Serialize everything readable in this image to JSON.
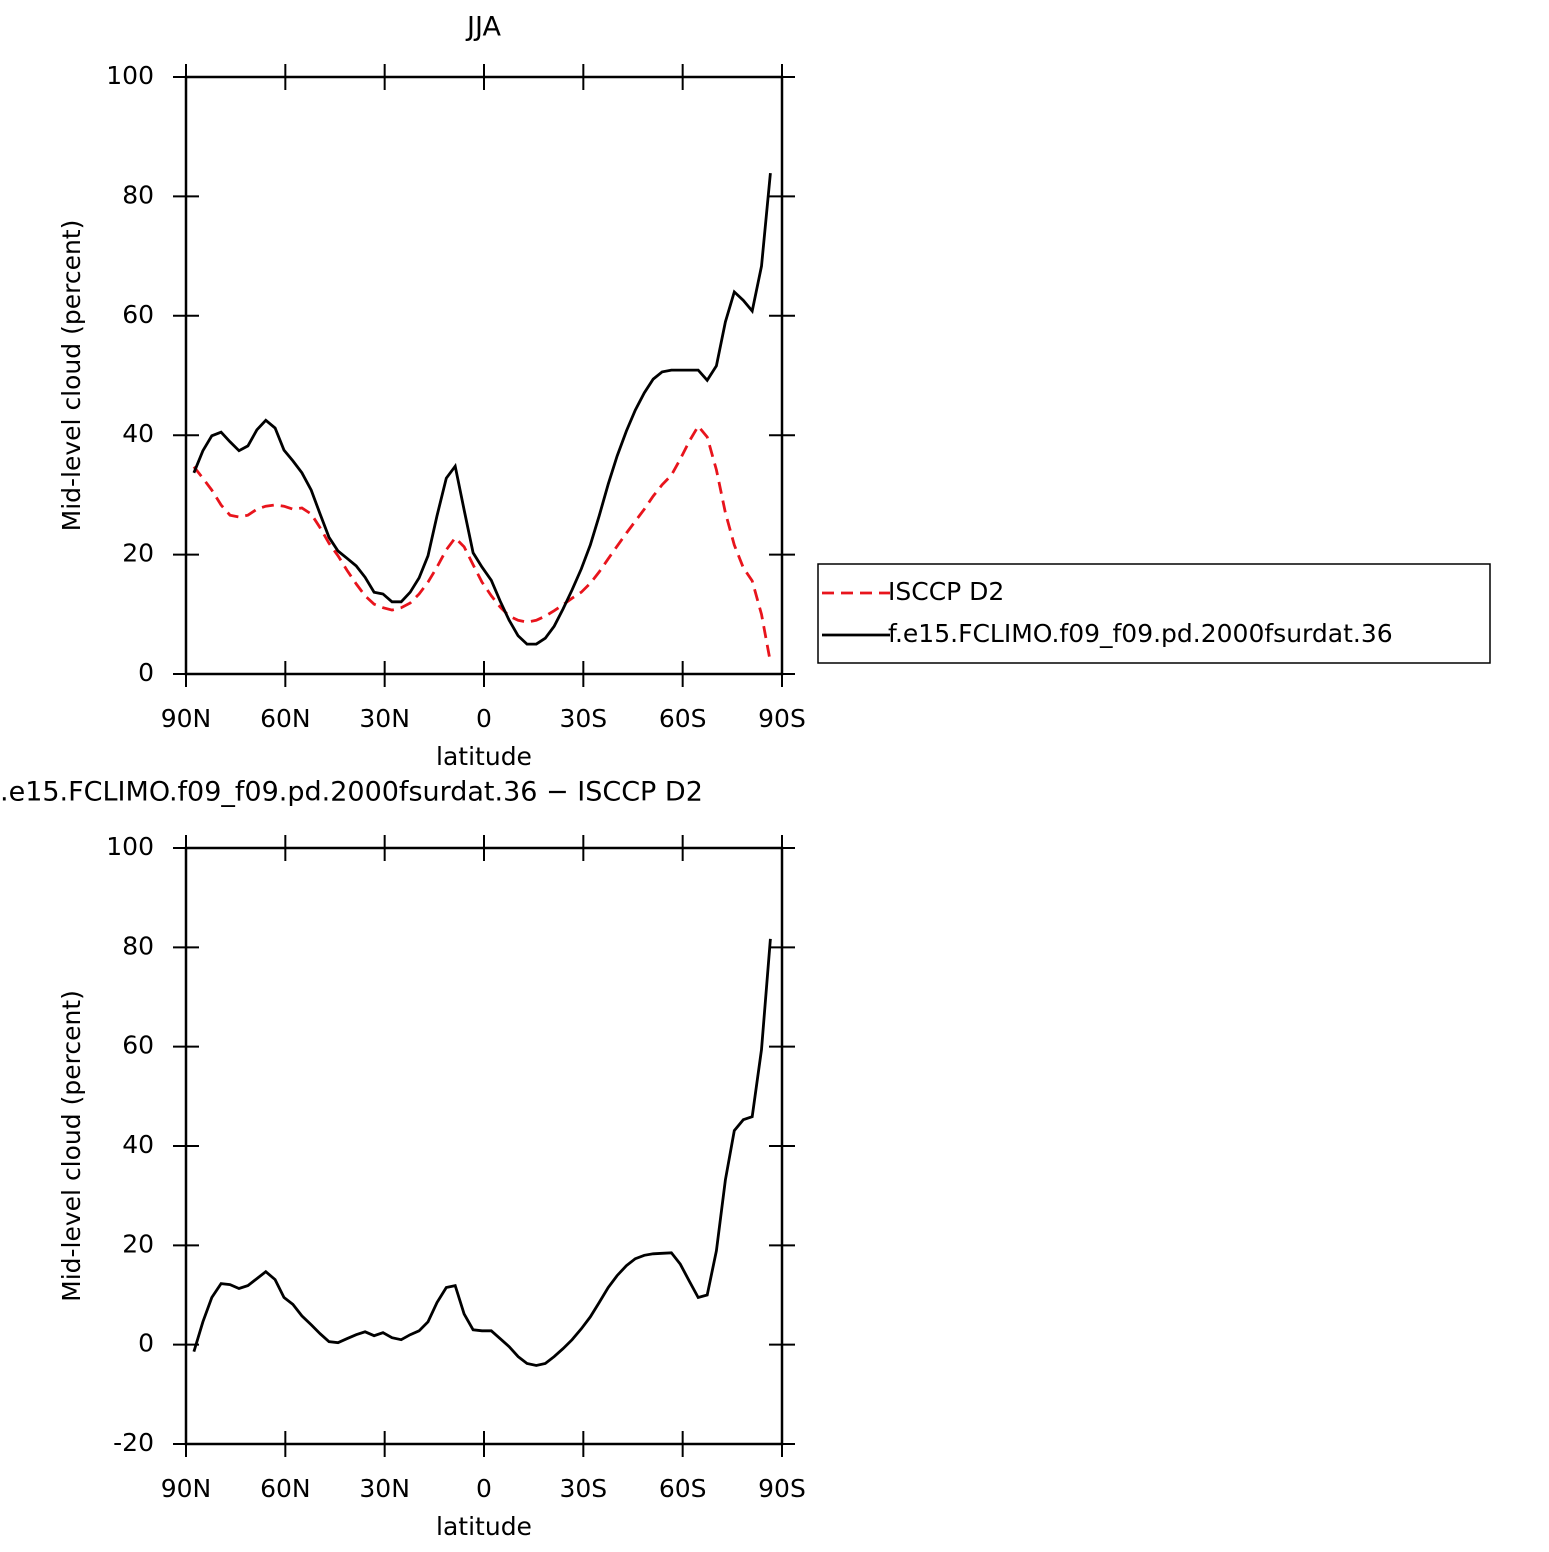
{
  "chart_data": [
    {
      "type": "line",
      "title": "JJA",
      "xlabel": "latitude",
      "ylabel": "Mid-level cloud (percent)",
      "xlim": [
        90,
        -90
      ],
      "xticks": [
        {
          "value": 90,
          "label": "90N"
        },
        {
          "value": 60,
          "label": "60N"
        },
        {
          "value": 30,
          "label": "30N"
        },
        0,
        {
          "value": -30,
          "label": "30S"
        },
        {
          "value": -60,
          "label": "60S"
        },
        {
          "value": -90,
          "label": "90S"
        }
      ],
      "ylim": [
        0,
        100
      ],
      "yticks": [
        0,
        20,
        40,
        60,
        80,
        100
      ],
      "legend": "right",
      "x": [
        87.6,
        84.9,
        82.2,
        79.4,
        76.7,
        74.0,
        71.3,
        68.6,
        65.9,
        63.1,
        60.4,
        57.7,
        55.0,
        52.2,
        49.5,
        46.8,
        44.1,
        41.4,
        38.6,
        35.9,
        33.2,
        30.5,
        27.8,
        25.0,
        22.3,
        19.6,
        16.9,
        14.2,
        11.4,
        8.7,
        6.0,
        3.3,
        0.6,
        -2.2,
        -4.9,
        -7.6,
        -10.3,
        -13.0,
        -15.8,
        -18.5,
        -21.2,
        -23.9,
        -26.6,
        -29.4,
        -32.1,
        -34.8,
        -37.5,
        -40.2,
        -43.0,
        -45.7,
        -48.4,
        -51.1,
        -53.8,
        -56.6,
        -59.3,
        -62.0,
        -64.7,
        -67.4,
        -70.2,
        -72.9,
        -75.6,
        -78.3,
        -81.0,
        -83.8,
        -86.5
      ],
      "series": [
        {
          "name": "ISCCP D2",
          "color": "#e8141c",
          "dashed": true,
          "values": [
            34.7,
            32.8,
            30.8,
            28.3,
            26.6,
            26.3,
            26.6,
            27.6,
            28.1,
            28.3,
            28.1,
            27.6,
            27.8,
            26.8,
            24.5,
            21.9,
            19.8,
            17.4,
            15.1,
            13.1,
            11.7,
            11.1,
            10.7,
            11.1,
            11.9,
            13.4,
            15.4,
            17.9,
            20.8,
            22.8,
            21.3,
            18.3,
            15.4,
            13.1,
            11.2,
            9.7,
            9.0,
            8.7,
            9.0,
            9.7,
            10.6,
            11.6,
            12.7,
            13.7,
            15.2,
            17.1,
            19.3,
            21.4,
            23.6,
            25.6,
            27.6,
            29.8,
            31.7,
            33.3,
            36.0,
            39.0,
            41.5,
            39.7,
            34.2,
            27.0,
            21.6,
            17.8,
            15.6,
            10.0,
            2.0
          ]
        },
        {
          "name": "f.e15.FCLIMO.f09_f09.pd.2000fsurdat.36",
          "color": "#000000",
          "dashed": false,
          "values": [
            33.7,
            37.4,
            39.9,
            40.5,
            38.9,
            37.4,
            38.2,
            40.9,
            42.5,
            41.2,
            37.5,
            35.7,
            33.7,
            30.8,
            26.8,
            22.9,
            20.6,
            19.4,
            18.1,
            16.2,
            13.7,
            13.4,
            12.1,
            12.1,
            13.7,
            16.1,
            19.8,
            26.5,
            32.8,
            34.8,
            27.5,
            20.3,
            17.9,
            15.7,
            12.2,
            9.0,
            6.4,
            5.0,
            5.0,
            6.0,
            8.0,
            10.9,
            14.1,
            17.6,
            21.6,
            26.5,
            31.8,
            36.5,
            40.7,
            44.2,
            47.1,
            49.4,
            50.6,
            50.9,
            50.9,
            50.9,
            50.9,
            49.2,
            51.6,
            59.0,
            64.0,
            62.6,
            60.8,
            68.3,
            83.9
          ]
        }
      ]
    },
    {
      "type": "line",
      "title": ".e15.FCLIMO.f09_f09.pd.2000fsurdat.36 − ISCCP D2",
      "xlabel": "latitude",
      "ylabel": "Mid-level cloud (percent)",
      "xlim": [
        90,
        -90
      ],
      "xticks": [
        {
          "value": 90,
          "label": "90N"
        },
        {
          "value": 60,
          "label": "60N"
        },
        {
          "value": 30,
          "label": "30N"
        },
        0,
        {
          "value": -30,
          "label": "30S"
        },
        {
          "value": -60,
          "label": "60S"
        },
        {
          "value": -90,
          "label": "90S"
        }
      ],
      "ylim": [
        -20,
        100
      ],
      "yticks": [
        -20,
        0,
        20,
        40,
        60,
        80,
        100
      ],
      "x": [
        87.6,
        84.9,
        82.2,
        79.4,
        76.7,
        74.0,
        71.3,
        68.6,
        65.9,
        63.1,
        60.4,
        57.7,
        55.0,
        52.2,
        49.5,
        46.8,
        44.1,
        41.4,
        38.6,
        35.9,
        33.2,
        30.5,
        27.8,
        25.0,
        22.3,
        19.6,
        16.9,
        14.2,
        11.4,
        8.7,
        6.0,
        3.3,
        0.6,
        -2.2,
        -4.9,
        -7.6,
        -10.3,
        -13.0,
        -15.8,
        -18.5,
        -21.2,
        -23.9,
        -26.6,
        -29.4,
        -32.1,
        -34.8,
        -37.5,
        -40.2,
        -43.0,
        -45.7,
        -48.4,
        -51.1,
        -53.8,
        -56.6,
        -59.3,
        -62.0,
        -64.7,
        -67.4,
        -70.2,
        -72.9,
        -75.6,
        -78.3,
        -81.0,
        -83.8,
        -86.5
      ],
      "color": "#000000",
      "values": [
        -1.4,
        4.6,
        9.5,
        12.3,
        12.1,
        11.3,
        11.9,
        13.3,
        14.7,
        13.1,
        9.5,
        8.1,
        5.8,
        4.0,
        2.2,
        0.6,
        0.4,
        1.2,
        2.0,
        2.6,
        1.8,
        2.4,
        1.4,
        1.0,
        2.0,
        2.8,
        4.6,
        8.5,
        11.5,
        11.9,
        6.2,
        3.0,
        2.8,
        2.8,
        1.2,
        -0.4,
        -2.4,
        -3.8,
        -4.2,
        -3.8,
        -2.4,
        -0.8,
        1.0,
        3.2,
        5.6,
        8.5,
        11.5,
        13.9,
        15.9,
        17.3,
        18.0,
        18.3,
        18.4,
        18.5,
        16.2,
        12.8,
        9.5,
        10.0,
        18.9,
        33.2,
        43.1,
        45.3,
        45.9,
        59.4,
        81.7
      ]
    }
  ]
}
